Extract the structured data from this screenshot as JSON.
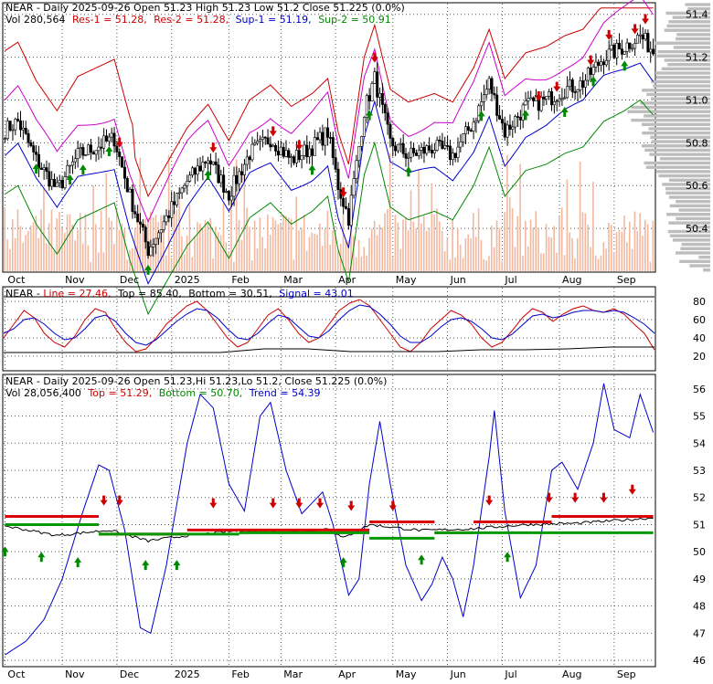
{
  "chart_data": [
    {
      "type": "candlestick",
      "header": {
        "title": "NEAR - Daily 2025-09-26 Open 51.23   High 51.23   Low 51.2   Close 51.225 (0.0%)",
        "vol_text": "Vol 280,564",
        "res1": "Res-1 = 51.28,",
        "res2": "Res-2 = 51.28,",
        "sup1": "Sup-1 = 51.19,",
        "sup2": "Sup-2 = 50.91"
      },
      "ylim": [
        50.2,
        51.45
      ],
      "y_ticks": [
        "51.4",
        "51.2",
        "51.0",
        "50.8",
        "50.6",
        "50.4"
      ],
      "y_tick_values": [
        51.4,
        51.2,
        51.0,
        50.8,
        50.6,
        50.4
      ],
      "x_ticks": [
        "Oct",
        "Nov",
        "Dec",
        "2025",
        "Feb",
        "Mar",
        "Apr",
        "May",
        "Jun",
        "Jul",
        "Aug",
        "Sep"
      ],
      "x_tick_index": [
        0,
        22,
        43,
        64,
        86,
        106,
        127,
        149,
        170,
        191,
        213,
        234
      ],
      "n_days": 250,
      "close_anchors": [
        [
          0,
          50.86
        ],
        [
          5,
          50.9
        ],
        [
          12,
          50.72
        ],
        [
          20,
          50.58
        ],
        [
          28,
          50.74
        ],
        [
          35,
          50.78
        ],
        [
          42,
          50.82
        ],
        [
          48,
          50.55
        ],
        [
          55,
          50.3
        ],
        [
          62,
          50.45
        ],
        [
          70,
          50.62
        ],
        [
          78,
          50.73
        ],
        [
          86,
          50.56
        ],
        [
          94,
          50.75
        ],
        [
          102,
          50.82
        ],
        [
          110,
          50.72
        ],
        [
          118,
          50.78
        ],
        [
          124,
          50.85
        ],
        [
          128,
          50.6
        ],
        [
          132,
          50.45
        ],
        [
          138,
          50.95
        ],
        [
          142,
          51.1
        ],
        [
          148,
          50.8
        ],
        [
          155,
          50.74
        ],
        [
          165,
          50.78
        ],
        [
          172,
          50.74
        ],
        [
          180,
          50.9
        ],
        [
          186,
          51.08
        ],
        [
          192,
          50.85
        ],
        [
          200,
          50.97
        ],
        [
          208,
          51.0
        ],
        [
          215,
          51.05
        ],
        [
          222,
          51.08
        ],
        [
          230,
          51.2
        ],
        [
          238,
          51.25
        ],
        [
          244,
          51.3
        ],
        [
          249,
          51.23
        ]
      ],
      "volume_range": [
        0,
        1
      ]
    },
    {
      "type": "line",
      "header": {
        "title": "NEAR - ",
        "line": "Line = 27.46,",
        "top": "Top = 85.40,",
        "bottom": "Bottom = 30.51,",
        "signal": "Signal = 43.01"
      },
      "ylim": [
        5,
        95
      ],
      "y_ticks": [
        "80",
        "60",
        "40",
        "20"
      ],
      "y_tick_values": [
        80,
        60,
        40,
        20
      ],
      "series": [
        {
          "color": "#cc0000",
          "values": [
            40,
            55,
            70,
            62,
            45,
            35,
            30,
            42,
            60,
            72,
            68,
            50,
            35,
            25,
            28,
            40,
            55,
            65,
            75,
            80,
            70,
            55,
            40,
            30,
            35,
            50,
            65,
            72,
            60,
            45,
            35,
            40,
            55,
            70,
            78,
            82,
            75,
            60,
            45,
            30,
            25,
            35,
            50,
            60,
            70,
            65,
            55,
            40,
            30,
            35,
            48,
            62,
            72,
            68,
            58,
            66,
            72,
            75,
            70,
            68,
            72,
            66,
            55,
            45,
            27
          ]
        },
        {
          "color": "#0000cc",
          "values": [
            45,
            50,
            60,
            62,
            55,
            45,
            38,
            40,
            50,
            62,
            65,
            58,
            45,
            35,
            32,
            38,
            48,
            58,
            66,
            72,
            70,
            62,
            50,
            40,
            38,
            45,
            56,
            65,
            62,
            52,
            42,
            40,
            48,
            60,
            70,
            76,
            74,
            66,
            55,
            42,
            35,
            35,
            42,
            52,
            60,
            62,
            58,
            50,
            40,
            38,
            44,
            54,
            64,
            66,
            62,
            64,
            68,
            70,
            70,
            68,
            70,
            68,
            62,
            55,
            45
          ]
        },
        {
          "color": "#000000",
          "name_hint": "top",
          "values": [
            85,
            85,
            85,
            85,
            85,
            85,
            85,
            85,
            85,
            85,
            85,
            85,
            85,
            85,
            85,
            85
          ]
        },
        {
          "color": "#000000",
          "name_hint": "bottom",
          "values": [
            24,
            24,
            24,
            24,
            24,
            24,
            28,
            28,
            25,
            25,
            25,
            27,
            27,
            28,
            30,
            30
          ]
        }
      ]
    },
    {
      "type": "line",
      "header": {
        "title": "NEAR - Daily 2025-09-26 Open 51.23,Hi 51.23,Lo 51.2, Close 51.225 (0.0%)",
        "vol_text": "Vol 28,056,400",
        "top": "Top = 51.29,",
        "bottom": "Bottom = 50.70,",
        "trend": "Trend = 54.39"
      },
      "ylim": [
        45.8,
        56.5
      ],
      "y_ticks": [
        "56",
        "55",
        "54",
        "53",
        "52",
        "51",
        "50",
        "49",
        "48",
        "47",
        "46"
      ],
      "y_tick_values": [
        56,
        55,
        54,
        53,
        52,
        51,
        50,
        49,
        48,
        47,
        46
      ],
      "trend_series": [
        [
          0,
          46.2
        ],
        [
          8,
          46.7
        ],
        [
          15,
          47.5
        ],
        [
          22,
          49.0
        ],
        [
          30,
          51.5
        ],
        [
          36,
          53.2
        ],
        [
          40,
          53.0
        ],
        [
          46,
          50.8
        ],
        [
          52,
          47.2
        ],
        [
          56,
          47.0
        ],
        [
          62,
          49.5
        ],
        [
          70,
          54.0
        ],
        [
          75,
          55.8
        ],
        [
          80,
          55.3
        ],
        [
          86,
          52.5
        ],
        [
          92,
          51.5
        ],
        [
          98,
          55.0
        ],
        [
          102,
          55.5
        ],
        [
          108,
          53.0
        ],
        [
          114,
          51.4
        ],
        [
          118,
          51.8
        ],
        [
          122,
          52.2
        ],
        [
          126,
          51.0
        ],
        [
          132,
          48.4
        ],
        [
          136,
          49.0
        ],
        [
          140,
          52.5
        ],
        [
          144,
          54.8
        ],
        [
          148,
          52.5
        ],
        [
          154,
          49.5
        ],
        [
          160,
          48.2
        ],
        [
          164,
          48.8
        ],
        [
          168,
          49.8
        ],
        [
          172,
          49.0
        ],
        [
          176,
          47.6
        ],
        [
          180,
          49.5
        ],
        [
          186,
          53.5
        ],
        [
          188,
          55.2
        ],
        [
          192,
          51.5
        ],
        [
          198,
          48.3
        ],
        [
          204,
          49.5
        ],
        [
          210,
          53.0
        ],
        [
          214,
          53.3
        ],
        [
          220,
          52.3
        ],
        [
          226,
          54.0
        ],
        [
          230,
          56.2
        ],
        [
          234,
          54.5
        ],
        [
          240,
          54.2
        ],
        [
          244,
          55.8
        ],
        [
          249,
          54.4
        ]
      ],
      "close_anchors": [
        [
          0,
          50.95
        ],
        [
          20,
          50.6
        ],
        [
          40,
          50.8
        ],
        [
          55,
          50.4
        ],
        [
          70,
          50.6
        ],
        [
          90,
          50.78
        ],
        [
          110,
          50.72
        ],
        [
          124,
          50.85
        ],
        [
          130,
          50.5
        ],
        [
          140,
          51.0
        ],
        [
          160,
          50.78
        ],
        [
          180,
          50.85
        ],
        [
          200,
          51.0
        ],
        [
          220,
          51.05
        ],
        [
          249,
          51.25
        ]
      ]
    }
  ]
}
